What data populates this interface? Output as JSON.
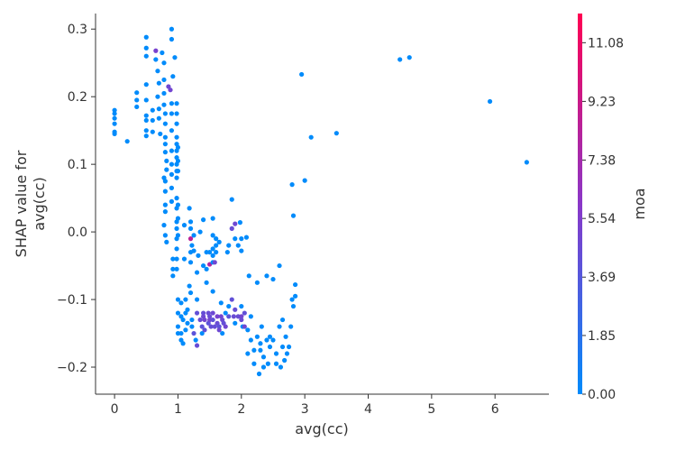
{
  "chart_data": {
    "type": "scatter",
    "xlabel": "avg(cc)",
    "ylabel_lines": [
      "SHAP value for",
      "avg(cc)"
    ],
    "xlim": [
      -0.3,
      6.85
    ],
    "ylim": [
      -0.24,
      0.323
    ],
    "xticks": [
      0,
      1,
      2,
      3,
      4,
      5,
      6
    ],
    "yticks": [
      -0.2,
      -0.1,
      0.0,
      0.1,
      0.2,
      0.3
    ],
    "grid": false,
    "colorbar": {
      "label": "moa",
      "range": [
        0.0,
        12.0
      ],
      "ticks": [
        0.0,
        1.85,
        3.69,
        5.54,
        7.38,
        9.23,
        11.08
      ],
      "tick_labels": [
        "0.00",
        "1.85",
        "3.69",
        "5.54",
        "7.38",
        "9.23",
        "11.08"
      ],
      "color_low": "#008bfb",
      "color_mid": "#8a37c8",
      "color_high": "#ff0052"
    },
    "points": [
      [
        0,
        0.18,
        0
      ],
      [
        0,
        0.175,
        0
      ],
      [
        0,
        0.168,
        0
      ],
      [
        0,
        0.16,
        0
      ],
      [
        0,
        0.148,
        0
      ],
      [
        0,
        0.145,
        0
      ],
      [
        0.2,
        0.134,
        0
      ],
      [
        0.35,
        0.206,
        0
      ],
      [
        0.35,
        0.195,
        0
      ],
      [
        0.35,
        0.185,
        0
      ],
      [
        0.5,
        0.288,
        0
      ],
      [
        0.5,
        0.272,
        0
      ],
      [
        0.5,
        0.26,
        0
      ],
      [
        0.5,
        0.218,
        0
      ],
      [
        0.5,
        0.195,
        0
      ],
      [
        0.5,
        0.172,
        0
      ],
      [
        0.5,
        0.165,
        0
      ],
      [
        0.5,
        0.15,
        0
      ],
      [
        0.5,
        0.142,
        0
      ],
      [
        0.6,
        0.18,
        0
      ],
      [
        0.6,
        0.165,
        0
      ],
      [
        0.6,
        0.148,
        0
      ],
      [
        0.65,
        0.268,
        5.2
      ],
      [
        0.65,
        0.255,
        0
      ],
      [
        0.68,
        0.238,
        0
      ],
      [
        0.7,
        0.22,
        0
      ],
      [
        0.68,
        0.2,
        0
      ],
      [
        0.7,
        0.182,
        0
      ],
      [
        0.7,
        0.168,
        0
      ],
      [
        0.72,
        0.145,
        0
      ],
      [
        0.75,
        0.265,
        0
      ],
      [
        0.78,
        0.25,
        0
      ],
      [
        0.78,
        0.225,
        0
      ],
      [
        0.78,
        0.205,
        0
      ],
      [
        0.78,
        0.188,
        0
      ],
      [
        0.8,
        0.175,
        0
      ],
      [
        0.8,
        0.16,
        0
      ],
      [
        0.8,
        0.14,
        0
      ],
      [
        0.8,
        0.13,
        0
      ],
      [
        0.8,
        0.118,
        0
      ],
      [
        0.82,
        0.105,
        0
      ],
      [
        0.82,
        0.092,
        0
      ],
      [
        0.78,
        0.08,
        0
      ],
      [
        0.8,
        0.075,
        0
      ],
      [
        0.8,
        0.06,
        0
      ],
      [
        0.8,
        0.04,
        0
      ],
      [
        0.8,
        0.03,
        0
      ],
      [
        0.78,
        0.01,
        0
      ],
      [
        0.8,
        -0.005,
        0
      ],
      [
        0.82,
        -0.015,
        0
      ],
      [
        0.85,
        0.215,
        4.8
      ],
      [
        0.88,
        0.21,
        5.0
      ],
      [
        0.9,
        0.3,
        0
      ],
      [
        0.9,
        0.285,
        0
      ],
      [
        0.92,
        0.23,
        0
      ],
      [
        0.9,
        0.19,
        0
      ],
      [
        0.9,
        0.175,
        0
      ],
      [
        0.9,
        0.15,
        0
      ],
      [
        0.9,
        0.12,
        0
      ],
      [
        0.9,
        0.1,
        0
      ],
      [
        0.9,
        0.085,
        0
      ],
      [
        0.9,
        0.065,
        0
      ],
      [
        0.9,
        0.045,
        0
      ],
      [
        0.92,
        -0.04,
        0
      ],
      [
        0.92,
        -0.055,
        0
      ],
      [
        0.92,
        -0.065,
        0
      ],
      [
        0.95,
        0.258,
        0
      ],
      [
        0.98,
        0.19,
        0
      ],
      [
        0.98,
        0.175,
        0
      ],
      [
        0.98,
        0.16,
        0
      ],
      [
        0.98,
        0.14,
        0
      ],
      [
        0.98,
        0.13,
        0
      ],
      [
        0.98,
        0.12,
        0
      ],
      [
        0.98,
        0.11,
        0
      ],
      [
        0.98,
        0.1,
        0
      ],
      [
        0.98,
        0.09,
        0
      ],
      [
        0.98,
        0.08,
        0
      ],
      [
        0.98,
        0.05,
        0
      ],
      [
        0.98,
        0.035,
        0
      ],
      [
        0.98,
        0.015,
        0
      ],
      [
        0.98,
        0.005,
        0
      ],
      [
        0.98,
        -0.01,
        0
      ],
      [
        0.98,
        -0.025,
        0
      ],
      [
        0.98,
        -0.04,
        0
      ],
      [
        0.98,
        -0.055,
        0
      ],
      [
        1.0,
        0.125,
        0
      ],
      [
        1.0,
        0.105,
        0
      ],
      [
        1.0,
        0.09,
        0
      ],
      [
        1.0,
        0.04,
        0
      ],
      [
        1.0,
        0.02,
        0
      ],
      [
        1.0,
        -0.005,
        0
      ],
      [
        1.0,
        -0.1,
        0
      ],
      [
        1.0,
        -0.12,
        0
      ],
      [
        1.0,
        -0.14,
        0
      ],
      [
        1.0,
        -0.15,
        0
      ],
      [
        1.05,
        -0.105,
        0
      ],
      [
        1.05,
        -0.125,
        0
      ],
      [
        1.05,
        -0.15,
        0
      ],
      [
        1.05,
        -0.16,
        0
      ],
      [
        1.08,
        -0.165,
        0
      ],
      [
        1.08,
        -0.13,
        0
      ],
      [
        1.1,
        0.01,
        0
      ],
      [
        1.1,
        -0.04,
        0
      ],
      [
        1.12,
        -0.1,
        0
      ],
      [
        1.12,
        -0.12,
        0
      ],
      [
        1.12,
        -0.145,
        0
      ],
      [
        1.15,
        -0.115,
        0
      ],
      [
        1.15,
        -0.135,
        0
      ],
      [
        1.18,
        0.035,
        0
      ],
      [
        1.2,
        0.015,
        0
      ],
      [
        1.2,
        0.005,
        0
      ],
      [
        1.2,
        -0.01,
        8.5
      ],
      [
        1.22,
        -0.02,
        0
      ],
      [
        1.2,
        -0.03,
        0
      ],
      [
        1.2,
        -0.045,
        0
      ],
      [
        1.18,
        -0.08,
        0
      ],
      [
        1.2,
        -0.09,
        0
      ],
      [
        1.22,
        -0.13,
        0
      ],
      [
        1.22,
        -0.14,
        0
      ],
      [
        1.25,
        -0.005,
        0
      ],
      [
        1.25,
        -0.028,
        0
      ],
      [
        1.25,
        -0.15,
        4.0
      ],
      [
        1.28,
        -0.16,
        0
      ],
      [
        1.3,
        -0.168,
        4.5
      ],
      [
        1.3,
        -0.12,
        4.2
      ],
      [
        1.3,
        -0.1,
        0
      ],
      [
        1.3,
        -0.06,
        0
      ],
      [
        1.32,
        -0.035,
        0
      ],
      [
        1.35,
        0.0,
        0
      ],
      [
        1.35,
        -0.13,
        4.6
      ],
      [
        1.38,
        -0.14,
        4.0
      ],
      [
        1.38,
        -0.15,
        0
      ],
      [
        1.4,
        0.018,
        0
      ],
      [
        1.4,
        -0.05,
        0
      ],
      [
        1.4,
        -0.12,
        4.4
      ],
      [
        1.4,
        -0.125,
        4.8
      ],
      [
        1.42,
        -0.13,
        5.0
      ],
      [
        1.42,
        -0.145,
        4.2
      ],
      [
        1.45,
        -0.03,
        0
      ],
      [
        1.45,
        -0.055,
        0
      ],
      [
        1.45,
        -0.075,
        0
      ],
      [
        1.48,
        -0.12,
        4.6
      ],
      [
        1.48,
        -0.135,
        4.0
      ],
      [
        1.5,
        -0.03,
        0
      ],
      [
        1.5,
        -0.048,
        8.0
      ],
      [
        1.5,
        -0.125,
        4.5
      ],
      [
        1.5,
        -0.13,
        5.0
      ],
      [
        1.52,
        -0.14,
        4.3
      ],
      [
        1.55,
        0.02,
        0
      ],
      [
        1.55,
        -0.005,
        0
      ],
      [
        1.55,
        -0.025,
        0
      ],
      [
        1.55,
        -0.035,
        0
      ],
      [
        1.55,
        -0.045,
        0
      ],
      [
        1.55,
        -0.088,
        0
      ],
      [
        1.55,
        -0.12,
        4.7
      ],
      [
        1.55,
        -0.13,
        4.1
      ],
      [
        1.58,
        -0.14,
        4.4
      ],
      [
        1.58,
        -0.045,
        4.8
      ],
      [
        1.6,
        -0.01,
        0
      ],
      [
        1.6,
        -0.02,
        0
      ],
      [
        1.6,
        -0.03,
        0
      ],
      [
        1.62,
        -0.125,
        5.2
      ],
      [
        1.62,
        -0.135,
        4.5
      ],
      [
        1.65,
        -0.015,
        0
      ],
      [
        1.65,
        -0.14,
        4.0
      ],
      [
        1.65,
        -0.145,
        4.8
      ],
      [
        1.68,
        -0.105,
        0
      ],
      [
        1.68,
        -0.125,
        5.0
      ],
      [
        1.7,
        -0.13,
        4.6
      ],
      [
        1.7,
        -0.15,
        0
      ],
      [
        1.72,
        -0.135,
        4.3
      ],
      [
        1.75,
        -0.12,
        0
      ],
      [
        1.75,
        -0.14,
        4.9
      ],
      [
        1.78,
        -0.03,
        0
      ],
      [
        1.8,
        -0.11,
        0
      ],
      [
        1.8,
        -0.125,
        4.0
      ],
      [
        1.8,
        -0.02,
        0
      ],
      [
        1.85,
        0.048,
        0
      ],
      [
        1.85,
        0.005,
        4.5
      ],
      [
        1.85,
        -0.1,
        4.2
      ],
      [
        1.88,
        -0.125,
        4.6
      ],
      [
        1.9,
        0.012,
        4.8
      ],
      [
        1.9,
        -0.01,
        0
      ],
      [
        1.9,
        -0.115,
        4.4
      ],
      [
        1.9,
        -0.135,
        0
      ],
      [
        1.95,
        -0.02,
        0
      ],
      [
        1.95,
        -0.125,
        4.5
      ],
      [
        1.98,
        0.014,
        0
      ],
      [
        2.0,
        -0.01,
        0
      ],
      [
        2.0,
        -0.028,
        0
      ],
      [
        2.0,
        -0.11,
        0
      ],
      [
        2.0,
        -0.125,
        5.0
      ],
      [
        2.0,
        -0.13,
        4.6
      ],
      [
        2.02,
        -0.14,
        0
      ],
      [
        2.05,
        -0.12,
        4.2
      ],
      [
        2.05,
        -0.14,
        4.8
      ],
      [
        2.08,
        -0.008,
        0
      ],
      [
        2.1,
        -0.145,
        0
      ],
      [
        2.1,
        -0.18,
        0
      ],
      [
        2.12,
        -0.065,
        0
      ],
      [
        2.15,
        -0.125,
        0
      ],
      [
        2.15,
        -0.16,
        0
      ],
      [
        2.2,
        -0.175,
        0
      ],
      [
        2.2,
        -0.195,
        0
      ],
      [
        2.25,
        -0.075,
        0
      ],
      [
        2.25,
        -0.155,
        0
      ],
      [
        2.28,
        -0.21,
        0
      ],
      [
        2.3,
        -0.165,
        0
      ],
      [
        2.3,
        -0.175,
        0
      ],
      [
        2.32,
        -0.14,
        0
      ],
      [
        2.35,
        -0.185,
        0
      ],
      [
        2.35,
        -0.2,
        0
      ],
      [
        2.4,
        -0.065,
        0
      ],
      [
        2.4,
        -0.16,
        0
      ],
      [
        2.42,
        -0.195,
        0
      ],
      [
        2.45,
        -0.155,
        0
      ],
      [
        2.45,
        -0.17,
        0
      ],
      [
        2.5,
        -0.07,
        0
      ],
      [
        2.5,
        -0.16,
        0
      ],
      [
        2.55,
        -0.18,
        0
      ],
      [
        2.55,
        -0.195,
        0
      ],
      [
        2.6,
        -0.05,
        0
      ],
      [
        2.6,
        -0.14,
        0
      ],
      [
        2.62,
        -0.2,
        0
      ],
      [
        2.65,
        -0.13,
        0
      ],
      [
        2.65,
        -0.17,
        0
      ],
      [
        2.68,
        -0.19,
        0
      ],
      [
        2.7,
        -0.155,
        0
      ],
      [
        2.72,
        -0.18,
        0
      ],
      [
        2.75,
        -0.17,
        0
      ],
      [
        2.78,
        -0.14,
        0
      ],
      [
        2.8,
        0.07,
        0
      ],
      [
        2.8,
        -0.1,
        0
      ],
      [
        2.82,
        0.024,
        0
      ],
      [
        2.82,
        -0.11,
        0
      ],
      [
        2.85,
        -0.078,
        0
      ],
      [
        2.85,
        -0.095,
        0
      ],
      [
        2.95,
        0.233,
        0
      ],
      [
        3.0,
        0.076,
        0
      ],
      [
        3.1,
        0.14,
        0
      ],
      [
        3.5,
        0.146,
        0
      ],
      [
        4.5,
        0.255,
        0
      ],
      [
        4.65,
        0.258,
        0
      ],
      [
        5.92,
        0.193,
        0
      ],
      [
        6.5,
        0.103,
        0
      ]
    ]
  }
}
